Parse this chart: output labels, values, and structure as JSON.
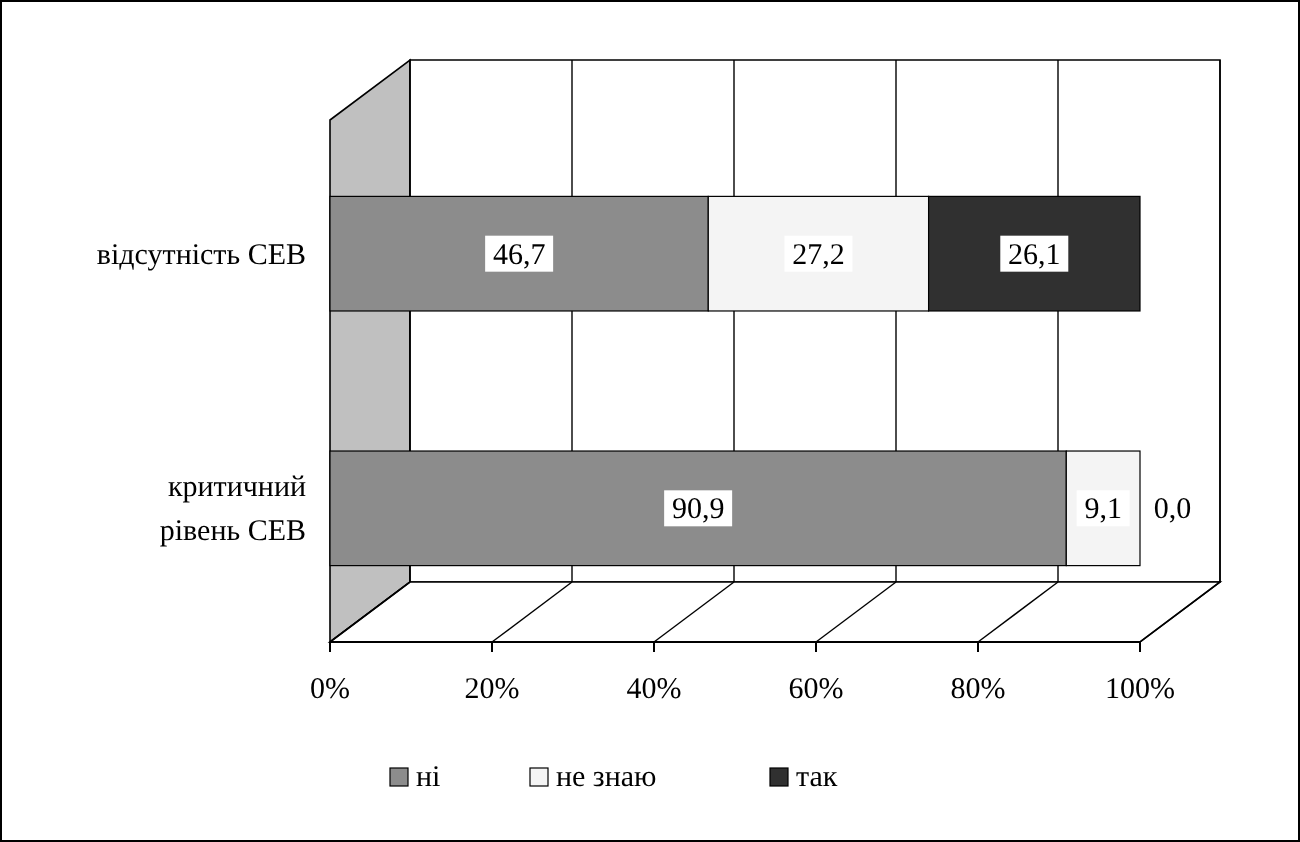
{
  "chart_data": {
    "type": "bar",
    "orientation": "horizontal",
    "stacked": true,
    "categories": [
      "відсутність СЕВ",
      "критичний рівень СЕВ"
    ],
    "series": [
      {
        "name": "ні",
        "color": "#8c8c8c",
        "values": [
          46.7,
          90.9
        ],
        "value_labels": [
          "46,7",
          "90,9"
        ]
      },
      {
        "name": "не знаю",
        "color": "#f4f4f4",
        "values": [
          27.2,
          9.1
        ],
        "value_labels": [
          "27,2",
          "9,1"
        ]
      },
      {
        "name": "так",
        "color": "#303030",
        "values": [
          26.1,
          0.0
        ],
        "value_labels": [
          "26,1",
          "0,0"
        ]
      }
    ],
    "xlim": [
      0,
      100
    ],
    "xticks": [
      {
        "value": 0,
        "label": "0%"
      },
      {
        "value": 20,
        "label": "20%"
      },
      {
        "value": 40,
        "label": "40%"
      },
      {
        "value": 60,
        "label": "60%"
      },
      {
        "value": 80,
        "label": "80%"
      },
      {
        "value": 100,
        "label": "100%"
      }
    ],
    "grid": "x",
    "legend": "bottom"
  }
}
